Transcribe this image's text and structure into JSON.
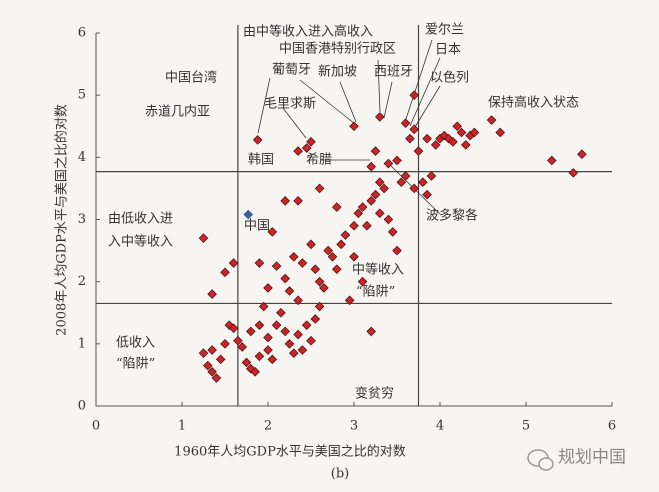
{
  "chart_data": {
    "type": "scatter",
    "x_label": "1960年人均GDP水平与美国之比的对数",
    "y_label": "2008年人均GDP水平与美国之比的对数",
    "caption": "(b)",
    "watermark": "规划中国",
    "xlim": [
      0,
      6
    ],
    "ylim": [
      0,
      6
    ],
    "xticks": [
      0,
      1,
      2,
      3,
      4,
      5,
      6
    ],
    "yticks": [
      0,
      1,
      2,
      3,
      4,
      5,
      6
    ],
    "reference_lines": {
      "x": [
        1.65,
        3.75
      ],
      "y": [
        1.65,
        3.77
      ]
    },
    "annotations": [
      "由中等收入进入高收入",
      "爱尔兰",
      "中国香港特别行政区",
      "日本",
      "葡萄牙",
      "新加坡",
      "西班牙",
      "以色列",
      "中国台湾",
      "保持高收入状态",
      "赤道几内亚",
      "毛里求斯",
      "韩国",
      "希腊",
      "由低收入进",
      "入中等收入",
      "中国",
      "波多黎各",
      "中等收入",
      "“陷阱”",
      "低收入",
      "“陷阱”",
      "变贫穷"
    ],
    "series": [
      {
        "color": "#c8262a",
        "x": [
          1.25,
          1.3,
          1.35,
          1.4,
          1.45,
          1.35,
          1.5,
          1.55,
          1.6,
          1.65,
          1.7,
          1.75,
          1.8,
          1.85,
          1.9,
          1.8,
          1.9,
          2.0,
          2.0,
          2.05,
          2.1,
          2.15,
          2.2,
          2.25,
          2.3,
          2.35,
          2.4,
          2.45,
          2.5,
          2.55,
          2.6,
          1.95,
          2.0,
          1.9,
          2.1,
          2.2,
          2.25,
          2.35,
          2.3,
          2.4,
          2.5,
          2.55,
          2.6,
          2.65,
          2.7,
          2.75,
          2.8,
          2.85,
          2.9,
          3.0,
          3.0,
          3.05,
          3.1,
          3.15,
          3.2,
          3.25,
          3.3,
          3.3,
          3.35,
          3.4,
          3.45,
          3.5,
          3.1,
          2.95,
          3.2,
          1.25,
          1.35,
          1.5,
          1.6,
          2.2,
          2.05,
          2.35,
          2.6,
          2.8,
          3.4,
          3.5,
          3.55,
          3.6,
          3.7,
          3.8,
          3.85,
          3.9,
          3.95,
          4.0,
          4.05,
          4.1,
          4.15,
          4.2,
          4.25,
          4.3,
          4.35,
          4.4,
          4.6,
          4.7,
          5.3,
          5.55,
          5.65,
          3.85,
          3.75,
          3.65,
          3.7,
          3.6,
          3.3,
          3.0,
          3.25,
          3.2,
          2.5,
          2.45,
          2.35,
          1.88,
          3.7
        ],
        "values": [
          0.85,
          0.65,
          0.55,
          0.45,
          0.75,
          0.9,
          1.0,
          1.3,
          1.25,
          1.05,
          0.95,
          0.7,
          0.6,
          0.55,
          0.8,
          1.2,
          1.3,
          1.1,
          0.9,
          0.75,
          1.3,
          1.5,
          1.2,
          1.0,
          0.85,
          1.15,
          0.9,
          1.3,
          1.05,
          1.4,
          1.6,
          1.6,
          1.9,
          2.3,
          2.25,
          2.05,
          1.85,
          1.7,
          2.4,
          2.3,
          2.6,
          2.2,
          2.0,
          1.9,
          2.5,
          2.4,
          2.2,
          2.6,
          2.75,
          2.4,
          2.9,
          3.1,
          3.2,
          2.9,
          3.3,
          3.4,
          3.1,
          3.6,
          3.5,
          3.0,
          2.8,
          2.5,
          2.0,
          1.7,
          1.2,
          2.7,
          1.8,
          2.15,
          2.3,
          3.3,
          2.8,
          3.3,
          3.5,
          3.2,
          3.9,
          3.95,
          3.6,
          3.7,
          3.5,
          3.6,
          3.4,
          3.7,
          4.2,
          4.3,
          4.35,
          4.3,
          4.25,
          4.5,
          4.4,
          4.2,
          4.35,
          4.4,
          4.6,
          4.4,
          3.95,
          3.75,
          4.05,
          4.3,
          4.1,
          4.3,
          4.45,
          4.55,
          4.65,
          4.5,
          4.1,
          3.85,
          4.25,
          4.15,
          4.1,
          4.28,
          5.0
        ]
      },
      {
        "color": "#3b5d9a",
        "x": [
          1.77
        ],
        "values": [
          3.08
        ]
      }
    ]
  }
}
